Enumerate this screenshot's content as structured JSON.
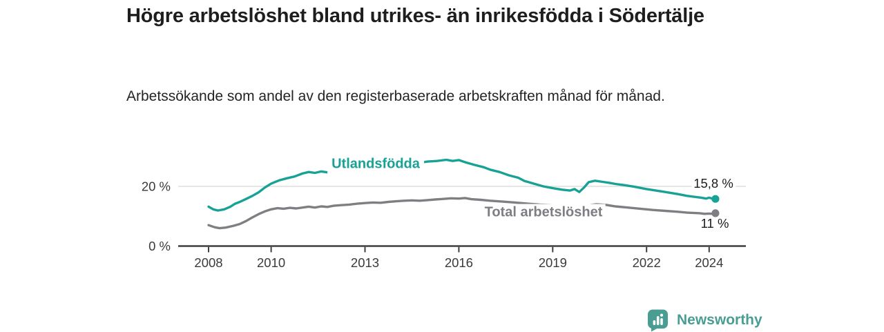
{
  "chart_data": {
    "type": "line",
    "title": "Högre arbetslöshet bland utrikes- än inrikesfödda i Södertälje",
    "subtitle": "Arbetssökande som andel av den registerbaserade arbetskraften månad för månad.",
    "x_unit": "year (monthly observations)",
    "xlim": [
      2006.9,
      2025.2
    ],
    "ylim": [
      0,
      30
    ],
    "grid": "single horizontal gridline at 20 %",
    "legend_position": "inline labels attached to lines, end-value labels at right",
    "x_ticks": [
      2008,
      2010,
      2013,
      2016,
      2019,
      2022,
      2024
    ],
    "y_ticks": [
      {
        "value": 0,
        "label": "0 %",
        "grid": false
      },
      {
        "value": 20,
        "label": "20 %",
        "grid": true
      }
    ],
    "series": [
      {
        "name": "Utlandsfödda",
        "color": "#17A295",
        "end_label": "15,8 %",
        "end_value": 15.8,
        "points": [
          [
            2008.0,
            13.2
          ],
          [
            2008.15,
            12.3
          ],
          [
            2008.3,
            11.9
          ],
          [
            2008.5,
            12.3
          ],
          [
            2008.7,
            13.2
          ],
          [
            2008.85,
            14.2
          ],
          [
            2009.0,
            14.8
          ],
          [
            2009.2,
            15.8
          ],
          [
            2009.4,
            16.8
          ],
          [
            2009.6,
            18.0
          ],
          [
            2009.8,
            19.6
          ],
          [
            2010.0,
            20.9
          ],
          [
            2010.25,
            22.0
          ],
          [
            2010.5,
            22.7
          ],
          [
            2010.75,
            23.3
          ],
          [
            2011.0,
            24.3
          ],
          [
            2011.2,
            24.8
          ],
          [
            2011.4,
            24.5
          ],
          [
            2011.6,
            25.0
          ],
          [
            2011.8,
            24.7
          ],
          [
            2012.0,
            25.3
          ],
          [
            2012.25,
            25.7
          ],
          [
            2012.5,
            25.4
          ],
          [
            2012.75,
            25.8
          ],
          [
            2013.0,
            26.0
          ],
          [
            2013.3,
            26.4
          ],
          [
            2013.6,
            26.2
          ],
          [
            2014.0,
            26.8
          ],
          [
            2014.3,
            27.1
          ],
          [
            2014.6,
            27.7
          ],
          [
            2015.0,
            28.3
          ],
          [
            2015.3,
            28.5
          ],
          [
            2015.6,
            28.9
          ],
          [
            2015.8,
            28.5
          ],
          [
            2016.0,
            28.8
          ],
          [
            2016.2,
            28.1
          ],
          [
            2016.5,
            27.2
          ],
          [
            2016.8,
            26.4
          ],
          [
            2017.0,
            25.6
          ],
          [
            2017.3,
            24.8
          ],
          [
            2017.6,
            23.7
          ],
          [
            2017.9,
            22.9
          ],
          [
            2018.1,
            21.8
          ],
          [
            2018.4,
            20.9
          ],
          [
            2018.7,
            20.0
          ],
          [
            2019.0,
            19.4
          ],
          [
            2019.3,
            18.9
          ],
          [
            2019.55,
            18.6
          ],
          [
            2019.7,
            19.1
          ],
          [
            2019.85,
            18.1
          ],
          [
            2020.0,
            19.6
          ],
          [
            2020.15,
            21.4
          ],
          [
            2020.35,
            21.9
          ],
          [
            2020.6,
            21.5
          ],
          [
            2020.8,
            21.2
          ],
          [
            2021.0,
            20.8
          ],
          [
            2021.3,
            20.4
          ],
          [
            2021.6,
            19.9
          ],
          [
            2022.0,
            19.1
          ],
          [
            2022.3,
            18.6
          ],
          [
            2022.6,
            18.1
          ],
          [
            2023.0,
            17.4
          ],
          [
            2023.3,
            16.8
          ],
          [
            2023.6,
            16.4
          ],
          [
            2023.75,
            16.2
          ],
          [
            2023.9,
            15.9
          ],
          [
            2024.0,
            16.2
          ],
          [
            2024.1,
            15.9
          ],
          [
            2024.2,
            15.8
          ]
        ]
      },
      {
        "name": "Total arbetslöshet",
        "color": "#7E7F83",
        "end_label": "11 %",
        "end_value": 11.0,
        "points": [
          [
            2008.0,
            7.0
          ],
          [
            2008.2,
            6.3
          ],
          [
            2008.35,
            6.0
          ],
          [
            2008.55,
            6.2
          ],
          [
            2008.8,
            6.8
          ],
          [
            2009.0,
            7.4
          ],
          [
            2009.2,
            8.4
          ],
          [
            2009.4,
            9.6
          ],
          [
            2009.6,
            10.7
          ],
          [
            2009.8,
            11.6
          ],
          [
            2010.0,
            12.3
          ],
          [
            2010.2,
            12.7
          ],
          [
            2010.4,
            12.5
          ],
          [
            2010.6,
            12.8
          ],
          [
            2010.8,
            12.6
          ],
          [
            2011.0,
            12.9
          ],
          [
            2011.2,
            13.2
          ],
          [
            2011.4,
            12.9
          ],
          [
            2011.6,
            13.3
          ],
          [
            2011.8,
            13.1
          ],
          [
            2012.0,
            13.5
          ],
          [
            2012.25,
            13.7
          ],
          [
            2012.5,
            13.9
          ],
          [
            2012.75,
            14.2
          ],
          [
            2013.0,
            14.4
          ],
          [
            2013.25,
            14.6
          ],
          [
            2013.5,
            14.5
          ],
          [
            2013.75,
            14.8
          ],
          [
            2014.0,
            15.0
          ],
          [
            2014.25,
            15.2
          ],
          [
            2014.5,
            15.3
          ],
          [
            2014.75,
            15.2
          ],
          [
            2015.0,
            15.4
          ],
          [
            2015.25,
            15.6
          ],
          [
            2015.5,
            15.8
          ],
          [
            2015.75,
            16.0
          ],
          [
            2016.0,
            15.9
          ],
          [
            2016.2,
            16.1
          ],
          [
            2016.4,
            15.7
          ],
          [
            2016.7,
            15.5
          ],
          [
            2017.0,
            15.2
          ],
          [
            2017.4,
            14.9
          ],
          [
            2017.8,
            14.6
          ],
          [
            2018.2,
            14.2
          ],
          [
            2018.6,
            13.9
          ],
          [
            2019.0,
            13.7
          ],
          [
            2019.4,
            13.4
          ],
          [
            2019.8,
            13.2
          ],
          [
            2020.1,
            13.6
          ],
          [
            2020.4,
            14.0
          ],
          [
            2020.7,
            13.8
          ],
          [
            2021.0,
            13.3
          ],
          [
            2021.4,
            12.9
          ],
          [
            2021.8,
            12.5
          ],
          [
            2022.2,
            12.1
          ],
          [
            2022.6,
            11.8
          ],
          [
            2023.0,
            11.5
          ],
          [
            2023.3,
            11.2
          ],
          [
            2023.7,
            11.0
          ],
          [
            2023.85,
            10.8
          ],
          [
            2024.0,
            10.9
          ],
          [
            2024.1,
            10.8
          ],
          [
            2024.2,
            11.0
          ]
        ]
      }
    ]
  },
  "branding": {
    "logo_text": "Newsworthy",
    "logo_color": "#4A9D92"
  },
  "style": {
    "axis_color": "#3E3E3E",
    "tick_label_color": "#3A3A3A",
    "gridline_color": "#D8D8D8",
    "title_color": "#1E1E1E"
  }
}
